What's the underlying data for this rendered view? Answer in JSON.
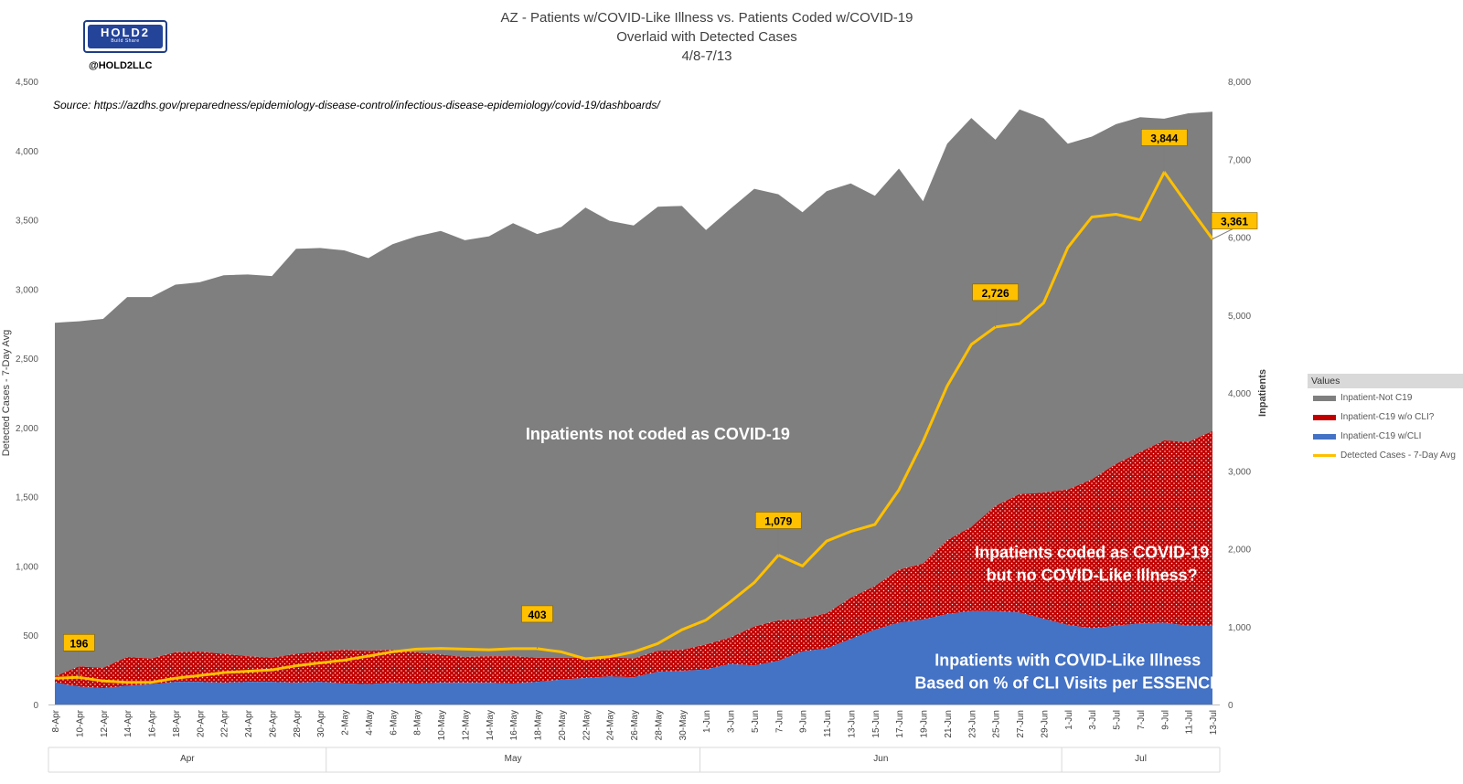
{
  "logo": {
    "word": "HOLD2",
    "tagline": "Build Share",
    "handle": "@HOLD2LLC"
  },
  "chart_data": {
    "type": "area",
    "title_lines": [
      "AZ - Patients w/COVID-Like Illness vs. Patients Coded w/COVID-19",
      "Overlaid with Detected Cases",
      "4/8-7/13"
    ],
    "source": "Source: https://azdhs.gov/preparedness/epidemiology-disease-control/infectious-disease-epidemiology/covid-19/dashboards/",
    "y_left": {
      "label": "Detected Cases - 7-Day Avg",
      "ylim": [
        0,
        4500
      ],
      "ticks": [
        "0",
        "500",
        "1,000",
        "1,500",
        "2,000",
        "2,500",
        "3,000",
        "3,500",
        "4,000",
        "4,500"
      ]
    },
    "y_right": {
      "label": "Inpatients",
      "ylim": [
        0,
        8000
      ],
      "ticks": [
        "0",
        "1,000",
        "2,000",
        "3,000",
        "4,000",
        "5,000",
        "6,000",
        "7,000",
        "8,000"
      ]
    },
    "x_tick_labels": [
      "8-Apr",
      "10-Apr",
      "12-Apr",
      "14-Apr",
      "16-Apr",
      "18-Apr",
      "20-Apr",
      "22-Apr",
      "24-Apr",
      "26-Apr",
      "28-Apr",
      "30-Apr",
      "2-May",
      "4-May",
      "6-May",
      "8-May",
      "10-May",
      "12-May",
      "14-May",
      "16-May",
      "18-May",
      "20-May",
      "22-May",
      "24-May",
      "26-May",
      "28-May",
      "30-May",
      "1-Jun",
      "3-Jun",
      "5-Jun",
      "7-Jun",
      "9-Jun",
      "11-Jun",
      "13-Jun",
      "15-Jun",
      "17-Jun",
      "19-Jun",
      "21-Jun",
      "23-Jun",
      "25-Jun",
      "27-Jun",
      "29-Jun",
      "1-Jul",
      "3-Jul",
      "5-Jul",
      "7-Jul",
      "9-Jul",
      "11-Jul",
      "13-Jul"
    ],
    "months": [
      {
        "label": "Apr",
        "start": 0,
        "end": 22
      },
      {
        "label": "May",
        "start": 23,
        "end": 53
      },
      {
        "label": "Jun",
        "start": 54,
        "end": 83
      },
      {
        "label": "Jul",
        "start": 84,
        "end": 96
      }
    ],
    "legend_title": "Values",
    "series": [
      {
        "name": "Inpatient-Not C19",
        "axis": "right",
        "type": "stacked-area",
        "color": "#7f7f7f",
        "keypoints": [
          [
            0,
            4540
          ],
          [
            2,
            4430
          ],
          [
            4,
            4480
          ],
          [
            6,
            4620
          ],
          [
            8,
            4640
          ],
          [
            10,
            4720
          ],
          [
            12,
            4740
          ],
          [
            14,
            4860
          ],
          [
            16,
            4900
          ],
          [
            18,
            4900
          ],
          [
            20,
            5200
          ],
          [
            22,
            5180
          ],
          [
            24,
            5130
          ],
          [
            26,
            5040
          ],
          [
            28,
            5210
          ],
          [
            30,
            5340
          ],
          [
            32,
            5440
          ],
          [
            34,
            5350
          ],
          [
            36,
            5390
          ],
          [
            38,
            5560
          ],
          [
            40,
            5440
          ],
          [
            42,
            5530
          ],
          [
            44,
            5780
          ],
          [
            46,
            5600
          ],
          [
            48,
            5560
          ],
          [
            50,
            5700
          ],
          [
            52,
            5700
          ],
          [
            54,
            5320
          ],
          [
            56,
            5500
          ],
          [
            58,
            5620
          ],
          [
            60,
            5470
          ],
          [
            62,
            5220
          ],
          [
            64,
            5420
          ],
          [
            66,
            5320
          ],
          [
            68,
            5010
          ],
          [
            70,
            5150
          ],
          [
            72,
            4650
          ],
          [
            74,
            5090
          ],
          [
            76,
            5250
          ],
          [
            78,
            4700
          ],
          [
            80,
            4940
          ],
          [
            82,
            4800
          ],
          [
            84,
            4440
          ],
          [
            86,
            4400
          ],
          [
            88,
            4360
          ],
          [
            90,
            4300
          ],
          [
            92,
            4130
          ],
          [
            94,
            4220
          ],
          [
            96,
            4100
          ]
        ]
      },
      {
        "name": "Inpatient-C19 w/o CLI?",
        "axis": "right",
        "type": "stacked-area",
        "color": "#c00000",
        "keypoints": [
          [
            0,
            80
          ],
          [
            2,
            260
          ],
          [
            4,
            260
          ],
          [
            6,
            370
          ],
          [
            8,
            330
          ],
          [
            10,
            380
          ],
          [
            12,
            390
          ],
          [
            14,
            370
          ],
          [
            16,
            330
          ],
          [
            18,
            310
          ],
          [
            20,
            370
          ],
          [
            22,
            390
          ],
          [
            24,
            430
          ],
          [
            26,
            430
          ],
          [
            28,
            420
          ],
          [
            30,
            400
          ],
          [
            32,
            360
          ],
          [
            34,
            330
          ],
          [
            36,
            340
          ],
          [
            38,
            350
          ],
          [
            40,
            310
          ],
          [
            42,
            280
          ],
          [
            44,
            260
          ],
          [
            46,
            250
          ],
          [
            48,
            240
          ],
          [
            50,
            270
          ],
          [
            52,
            270
          ],
          [
            54,
            320
          ],
          [
            56,
            340
          ],
          [
            58,
            500
          ],
          [
            60,
            520
          ],
          [
            62,
            420
          ],
          [
            64,
            450
          ],
          [
            66,
            530
          ],
          [
            68,
            560
          ],
          [
            70,
            680
          ],
          [
            72,
            720
          ],
          [
            74,
            950
          ],
          [
            76,
            1080
          ],
          [
            78,
            1350
          ],
          [
            80,
            1520
          ],
          [
            82,
            1620
          ],
          [
            84,
            1740
          ],
          [
            86,
            1910
          ],
          [
            88,
            2080
          ],
          [
            90,
            2200
          ],
          [
            92,
            2340
          ],
          [
            94,
            2360
          ],
          [
            96,
            2500
          ]
        ]
      },
      {
        "name": "Inpatient-C19 w/CLI",
        "axis": "right",
        "type": "stacked-area",
        "color": "#4472c4",
        "keypoints": [
          [
            0,
            280
          ],
          [
            2,
            230
          ],
          [
            4,
            210
          ],
          [
            6,
            240
          ],
          [
            8,
            260
          ],
          [
            10,
            290
          ],
          [
            12,
            290
          ],
          [
            14,
            280
          ],
          [
            16,
            290
          ],
          [
            18,
            290
          ],
          [
            20,
            280
          ],
          [
            22,
            290
          ],
          [
            24,
            270
          ],
          [
            26,
            260
          ],
          [
            28,
            280
          ],
          [
            30,
            270
          ],
          [
            32,
            280
          ],
          [
            34,
            280
          ],
          [
            36,
            280
          ],
          [
            38,
            270
          ],
          [
            40,
            290
          ],
          [
            42,
            320
          ],
          [
            44,
            340
          ],
          [
            46,
            360
          ],
          [
            48,
            350
          ],
          [
            50,
            420
          ],
          [
            52,
            430
          ],
          [
            54,
            450
          ],
          [
            56,
            520
          ],
          [
            58,
            500
          ],
          [
            60,
            560
          ],
          [
            62,
            680
          ],
          [
            64,
            720
          ],
          [
            66,
            840
          ],
          [
            68,
            960
          ],
          [
            70,
            1050
          ],
          [
            72,
            1090
          ],
          [
            74,
            1160
          ],
          [
            76,
            1200
          ],
          [
            78,
            1200
          ],
          [
            80,
            1180
          ],
          [
            82,
            1100
          ],
          [
            84,
            1020
          ],
          [
            86,
            980
          ],
          [
            88,
            1010
          ],
          [
            90,
            1040
          ],
          [
            92,
            1050
          ],
          [
            94,
            1010
          ],
          [
            96,
            1010
          ]
        ]
      },
      {
        "name": "Detected Cases - 7-Day Avg",
        "axis": "left",
        "type": "line",
        "color": "#ffc000",
        "keypoints": [
          [
            0,
            190
          ],
          [
            2,
            196
          ],
          [
            4,
            170
          ],
          [
            6,
            160
          ],
          [
            8,
            160
          ],
          [
            10,
            190
          ],
          [
            12,
            210
          ],
          [
            14,
            230
          ],
          [
            16,
            240
          ],
          [
            18,
            250
          ],
          [
            20,
            280
          ],
          [
            22,
            300
          ],
          [
            24,
            320
          ],
          [
            26,
            350
          ],
          [
            28,
            380
          ],
          [
            30,
            400
          ],
          [
            32,
            405
          ],
          [
            34,
            400
          ],
          [
            36,
            395
          ],
          [
            38,
            403
          ],
          [
            40,
            403
          ],
          [
            42,
            380
          ],
          [
            44,
            330
          ],
          [
            46,
            345
          ],
          [
            48,
            380
          ],
          [
            50,
            440
          ],
          [
            52,
            540
          ],
          [
            54,
            610
          ],
          [
            56,
            740
          ],
          [
            58,
            880
          ],
          [
            60,
            1079
          ],
          [
            62,
            1000
          ],
          [
            64,
            1180
          ],
          [
            66,
            1250
          ],
          [
            68,
            1300
          ],
          [
            70,
            1550
          ],
          [
            72,
            1900
          ],
          [
            74,
            2300
          ],
          [
            76,
            2600
          ],
          [
            78,
            2726
          ],
          [
            80,
            2750
          ],
          [
            82,
            2900
          ],
          [
            84,
            3300
          ],
          [
            86,
            3520
          ],
          [
            88,
            3540
          ],
          [
            90,
            3500
          ],
          [
            92,
            3844
          ],
          [
            94,
            3600
          ],
          [
            96,
            3361
          ]
        ]
      }
    ],
    "data_labels": [
      {
        "text": "196",
        "series": "Detected Cases - 7-Day Avg",
        "index": 2,
        "value": 196
      },
      {
        "text": "403",
        "series": "Detected Cases - 7-Day Avg",
        "index": 40,
        "value": 403
      },
      {
        "text": "1,079",
        "series": "Detected Cases - 7-Day Avg",
        "index": 60,
        "value": 1079
      },
      {
        "text": "2,726",
        "series": "Detected Cases - 7-Day Avg",
        "index": 78,
        "value": 2726
      },
      {
        "text": "3,844",
        "series": "Detected Cases - 7-Day Avg",
        "index": 92,
        "value": 3844
      },
      {
        "text": "3,361",
        "series": "Detected Cases - 7-Day Avg",
        "index": 96,
        "value": 3361
      }
    ],
    "annotations": [
      {
        "lines": [
          "Inpatients not coded as COVID-19"
        ],
        "index": 50,
        "value_right": 3400
      },
      {
        "lines": [
          "Inpatients coded as COVID-19",
          "but no COVID-Like Illness?"
        ],
        "index": 86,
        "value_right": 1880
      },
      {
        "lines": [
          "Inpatients with COVID-Like Illness",
          "Based on % of CLI Visits per ESSENCE"
        ],
        "index": 84,
        "value_right": 500
      }
    ]
  }
}
